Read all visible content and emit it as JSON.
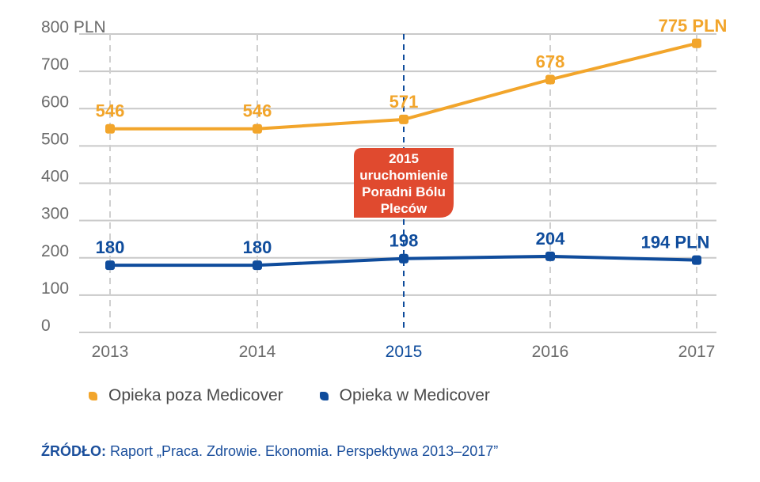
{
  "chart_data": {
    "type": "line",
    "categories": [
      "2013",
      "2014",
      "2015",
      "2016",
      "2017"
    ],
    "ylim": [
      0,
      800
    ],
    "yticks": [
      0,
      100,
      200,
      300,
      400,
      500,
      600,
      700,
      800
    ],
    "ytick_labels": [
      "0",
      "100",
      "200",
      "300",
      "400",
      "500",
      "600",
      "700",
      "800 PLN"
    ],
    "grid": true,
    "series": [
      {
        "name": "Opieka poza Medicover",
        "color": "#f2a52b",
        "values": [
          546,
          546,
          571,
          678,
          775
        ],
        "labels": [
          "546",
          "546",
          "571",
          "678",
          "775 PLN"
        ]
      },
      {
        "name": "Opieka w Medicover",
        "color": "#0f4c9c",
        "values": [
          180,
          180,
          198,
          204,
          194
        ],
        "labels": [
          "180",
          "180",
          "198",
          "204",
          "194 PLN"
        ]
      }
    ],
    "highlight_category": "2015",
    "annotation": {
      "lines": [
        "2015",
        "uruchomienie",
        "Poradni Bólu",
        "Pleców"
      ],
      "color": "#e04a2f"
    }
  },
  "source": {
    "label": "ŹRÓDŁO:",
    "text": " Raport „Praca. Zdrowie. Ekonomia. Perspektywa 2013–2017”"
  }
}
